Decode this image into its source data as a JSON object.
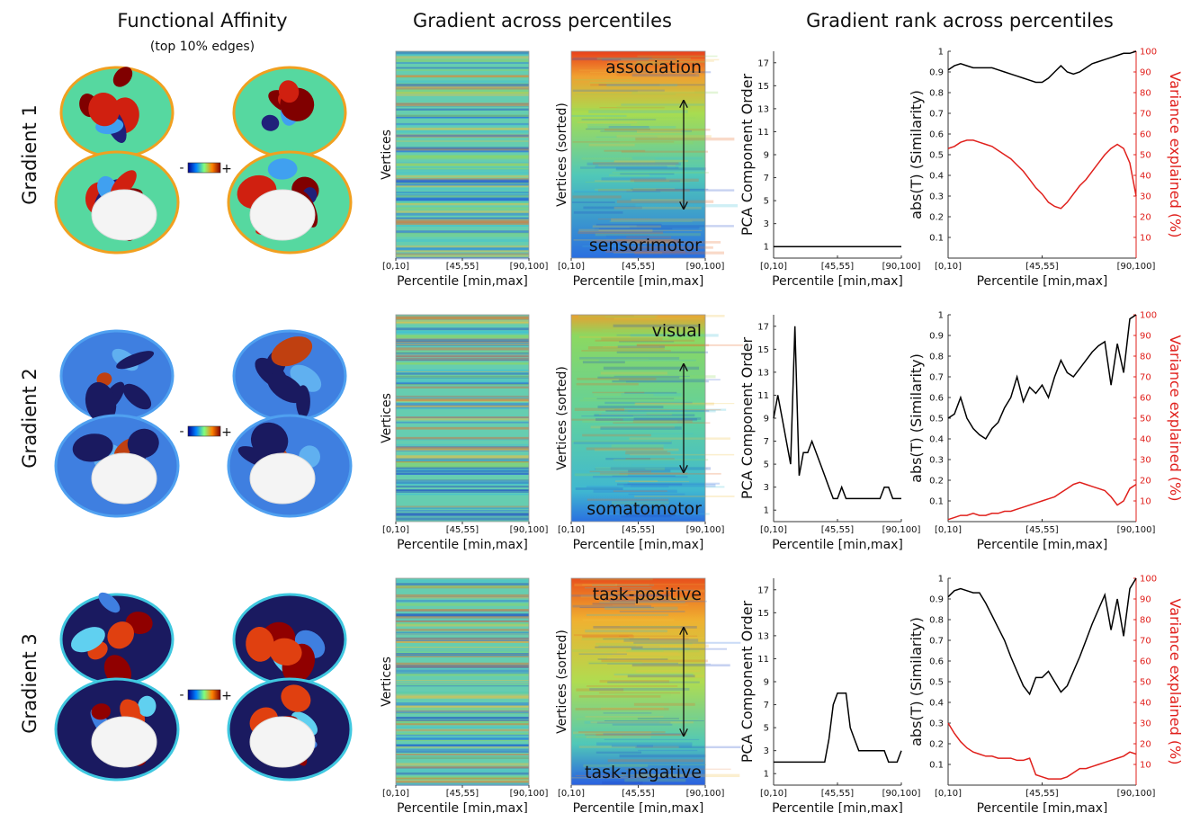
{
  "titles": {
    "affinity": "Functional Affinity",
    "affinity_sub": "(top 10% edges)",
    "percentiles": "Gradient across percentiles",
    "rank": "Gradient rank across percentiles"
  },
  "rows": [
    {
      "label": "Gradient 1",
      "colorbar_min": "-",
      "colorbar_max": "+"
    },
    {
      "label": "Gradient 2",
      "colorbar_min": "-",
      "colorbar_max": "+"
    },
    {
      "label": "Gradient 3",
      "colorbar_min": "-",
      "colorbar_max": "+"
    }
  ],
  "chart_data": [
    {
      "type": "heatmap",
      "ylabel": "Vertices",
      "xlabel": "Percentile [min,max]",
      "categories": [
        "[0,10]",
        "[45,55]",
        "[90,100]"
      ]
    },
    {
      "type": "heatmap",
      "ylabel": "Vertices (sorted)",
      "xlabel": "Percentile [min,max]",
      "categories": [
        "[0,10]",
        "[45,55]",
        "[90,100]"
      ],
      "annotations": [
        "association",
        "sensorimotor"
      ]
    },
    {
      "type": "line",
      "ylabel": "PCA Component Order",
      "xlabel": "Percentile [min,max]",
      "categories": [
        "[0,10]",
        null,
        null,
        null,
        null,
        null,
        null,
        null,
        null,
        null,
        null,
        null,
        null,
        null,
        null,
        "[45,55]",
        null,
        null,
        null,
        null,
        null,
        null,
        null,
        null,
        null,
        null,
        null,
        null,
        null,
        null,
        "[90,100]"
      ],
      "ylim": [
        0,
        18
      ],
      "yticks": [
        1,
        3,
        5,
        7,
        9,
        11,
        13,
        15,
        17
      ],
      "series": [
        {
          "color": "#000000",
          "values": [
            1,
            1,
            1,
            1,
            1,
            1,
            1,
            1,
            1,
            1,
            1,
            1,
            1,
            1,
            1,
            1,
            1,
            1,
            1,
            1,
            1,
            1,
            1,
            1,
            1,
            1,
            1,
            1,
            1,
            1,
            1
          ]
        }
      ]
    },
    {
      "type": "line",
      "ylabel": "abs(T) (Similarity)",
      "y2label": "Variance explained (%)",
      "xlabel": "Percentile [min,max]",
      "categories": [
        "[0,10]",
        null,
        null,
        null,
        null,
        null,
        null,
        null,
        null,
        null,
        null,
        null,
        null,
        null,
        null,
        "[45,55]",
        null,
        null,
        null,
        null,
        null,
        null,
        null,
        null,
        null,
        null,
        null,
        null,
        null,
        null,
        "[90,100]"
      ],
      "ylim": [
        0,
        1
      ],
      "yticks": [
        0.1,
        0.2,
        0.3,
        0.4,
        0.5,
        0.6,
        0.7,
        0.8,
        0.9,
        1
      ],
      "y2lim": [
        0,
        100
      ],
      "y2ticks": [
        10,
        20,
        30,
        40,
        50,
        60,
        70,
        80,
        90,
        100
      ],
      "series": [
        {
          "color": "#000000",
          "values": [
            0.91,
            0.93,
            0.94,
            0.93,
            0.92,
            0.92,
            0.92,
            0.92,
            0.91,
            0.9,
            0.89,
            0.88,
            0.87,
            0.86,
            0.85,
            0.85,
            0.87,
            0.9,
            0.93,
            0.9,
            0.89,
            0.9,
            0.92,
            0.94,
            0.95,
            0.96,
            0.97,
            0.98,
            0.99,
            0.99,
            1.0
          ]
        },
        {
          "color": "#e0201c",
          "axis": "y2",
          "values": [
            53,
            54,
            56,
            57,
            57,
            56,
            55,
            54,
            52,
            50,
            48,
            45,
            42,
            38,
            34,
            31,
            27,
            25,
            24,
            27,
            31,
            35,
            38,
            42,
            46,
            50,
            53,
            55,
            53,
            46,
            30
          ]
        }
      ]
    },
    {
      "type": "heatmap",
      "ylabel": "Vertices",
      "xlabel": "Percentile [min,max]",
      "categories": [
        "[0,10]",
        "[45,55]",
        "[90,100]"
      ]
    },
    {
      "type": "heatmap",
      "ylabel": "Vertices (sorted)",
      "xlabel": "Percentile [min,max]",
      "categories": [
        "[0,10]",
        "[45,55]",
        "[90,100]"
      ],
      "annotations": [
        "visual",
        "somatomotor"
      ]
    },
    {
      "type": "line",
      "ylabel": "PCA Component Order",
      "xlabel": "Percentile [min,max]",
      "categories": [
        "[0,10]",
        null,
        null,
        null,
        null,
        null,
        null,
        null,
        null,
        null,
        null,
        null,
        null,
        null,
        null,
        "[45,55]",
        null,
        null,
        null,
        null,
        null,
        null,
        null,
        null,
        null,
        null,
        null,
        null,
        null,
        null,
        "[90,100]"
      ],
      "ylim": [
        0,
        18
      ],
      "yticks": [
        1,
        3,
        5,
        7,
        9,
        11,
        13,
        15,
        17
      ],
      "series": [
        {
          "color": "#000000",
          "values": [
            9,
            11,
            9,
            7,
            5,
            17,
            4,
            6,
            6,
            7,
            6,
            5,
            4,
            3,
            2,
            2,
            3,
            2,
            2,
            2,
            2,
            2,
            2,
            2,
            2,
            2,
            3,
            3,
            2,
            2,
            2
          ]
        }
      ]
    },
    {
      "type": "line",
      "ylabel": "abs(T) (Similarity)",
      "y2label": "Variance explained (%)",
      "xlabel": "Percentile [min,max]",
      "categories": [
        "[0,10]",
        null,
        null,
        null,
        null,
        null,
        null,
        null,
        null,
        null,
        null,
        null,
        null,
        null,
        null,
        "[45,55]",
        null,
        null,
        null,
        null,
        null,
        null,
        null,
        null,
        null,
        null,
        null,
        null,
        null,
        null,
        "[90,100]"
      ],
      "ylim": [
        0,
        1
      ],
      "yticks": [
        0.1,
        0.2,
        0.3,
        0.4,
        0.5,
        0.6,
        0.7,
        0.8,
        0.9,
        1
      ],
      "y2lim": [
        0,
        100
      ],
      "y2ticks": [
        10,
        20,
        30,
        40,
        50,
        60,
        70,
        80,
        90,
        100
      ],
      "series": [
        {
          "color": "#000000",
          "values": [
            0.5,
            0.52,
            0.6,
            0.5,
            0.45,
            0.42,
            0.4,
            0.45,
            0.48,
            0.55,
            0.6,
            0.7,
            0.58,
            0.65,
            0.62,
            0.66,
            0.6,
            0.7,
            0.78,
            0.72,
            0.7,
            0.74,
            0.78,
            0.82,
            0.85,
            0.87,
            0.66,
            0.86,
            0.72,
            0.98,
            1.0
          ]
        },
        {
          "color": "#e0201c",
          "axis": "y2",
          "values": [
            1,
            2,
            3,
            3,
            4,
            3,
            3,
            4,
            4,
            5,
            5,
            6,
            7,
            8,
            9,
            10,
            11,
            12,
            14,
            16,
            18,
            19,
            18,
            17,
            16,
            15,
            12,
            8,
            10,
            16,
            18
          ]
        }
      ]
    },
    {
      "type": "heatmap",
      "ylabel": "Vertices",
      "xlabel": "Percentile [min,max]",
      "categories": [
        "[0,10]",
        "[45,55]",
        "[90,100]"
      ]
    },
    {
      "type": "heatmap",
      "ylabel": "Vertices (sorted)",
      "xlabel": "Percentile [min,max]",
      "categories": [
        "[0,10]",
        "[45,55]",
        "[90,100]"
      ],
      "annotations": [
        "task-positive",
        "task-negative"
      ]
    },
    {
      "type": "line",
      "ylabel": "PCA Component Order",
      "xlabel": "Percentile [min,max]",
      "categories": [
        "[0,10]",
        null,
        null,
        null,
        null,
        null,
        null,
        null,
        null,
        null,
        null,
        null,
        null,
        null,
        null,
        "[45,55]",
        null,
        null,
        null,
        null,
        null,
        null,
        null,
        null,
        null,
        null,
        null,
        null,
        null,
        null,
        "[90,100]"
      ],
      "ylim": [
        0,
        18
      ],
      "yticks": [
        1,
        3,
        5,
        7,
        9,
        11,
        13,
        15,
        17
      ],
      "series": [
        {
          "color": "#000000",
          "values": [
            2,
            2,
            2,
            2,
            2,
            2,
            2,
            2,
            2,
            2,
            2,
            2,
            2,
            4,
            7,
            8,
            8,
            8,
            5,
            4,
            3,
            3,
            3,
            3,
            3,
            3,
            3,
            2,
            2,
            2,
            3
          ]
        }
      ]
    },
    {
      "type": "line",
      "ylabel": "abs(T) (Similarity)",
      "y2label": "Variance explained (%)",
      "xlabel": "Percentile [min,max]",
      "categories": [
        "[0,10]",
        null,
        null,
        null,
        null,
        null,
        null,
        null,
        null,
        null,
        null,
        null,
        null,
        null,
        null,
        "[45,55]",
        null,
        null,
        null,
        null,
        null,
        null,
        null,
        null,
        null,
        null,
        null,
        null,
        null,
        null,
        "[90,100]"
      ],
      "ylim": [
        0,
        1
      ],
      "yticks": [
        0.1,
        0.2,
        0.3,
        0.4,
        0.5,
        0.6,
        0.7,
        0.8,
        0.9,
        1
      ],
      "y2lim": [
        0,
        100
      ],
      "y2ticks": [
        10,
        20,
        30,
        40,
        50,
        60,
        70,
        80,
        90,
        100
      ],
      "series": [
        {
          "color": "#000000",
          "values": [
            0.91,
            0.94,
            0.95,
            0.94,
            0.93,
            0.93,
            0.88,
            0.82,
            0.76,
            0.7,
            0.62,
            0.55,
            0.48,
            0.44,
            0.52,
            0.52,
            0.55,
            0.5,
            0.45,
            0.48,
            0.55,
            0.62,
            0.7,
            0.78,
            0.85,
            0.92,
            0.75,
            0.9,
            0.72,
            0.95,
            1.0
          ]
        },
        {
          "color": "#e0201c",
          "axis": "y2",
          "values": [
            30,
            25,
            21,
            18,
            16,
            15,
            14,
            14,
            13,
            13,
            13,
            12,
            12,
            13,
            5,
            4,
            3,
            3,
            3,
            4,
            6,
            8,
            8,
            9,
            10,
            11,
            12,
            13,
            14,
            16,
            15
          ]
        }
      ]
    }
  ]
}
